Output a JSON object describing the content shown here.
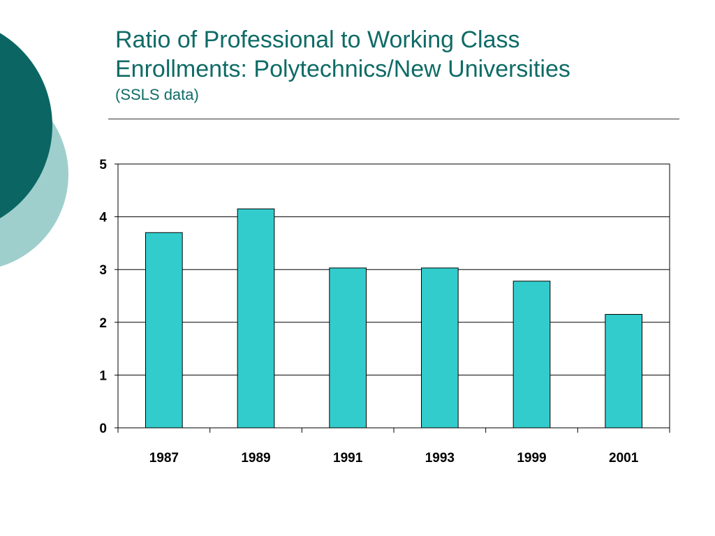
{
  "slide": {
    "title_line1": "Ratio of Professional to Working Class",
    "title_line2": "Enrollments: Polytechnics/New Universities",
    "subtitle": "(SSLS data)",
    "title_color": "#0f6b66",
    "decor_colors": {
      "dark": "#0b6663",
      "light": "#9fcfcd"
    }
  },
  "chart_data": {
    "type": "bar",
    "title": "Ratio of Professional to Working Class Enrollments: Polytechnics/New Universities",
    "subtitle": "(SSLS data)",
    "categories": [
      "1987",
      "1989",
      "1991",
      "1993",
      "1999",
      "2001"
    ],
    "values": [
      3.7,
      4.15,
      3.03,
      3.03,
      2.78,
      2.15
    ],
    "xlabel": "",
    "ylabel": "",
    "ylim": [
      0,
      5
    ],
    "yticks": [
      "0",
      "1",
      "2",
      "3",
      "4",
      "5"
    ],
    "grid": true,
    "legend": "none",
    "bar_color": "#33cccc"
  }
}
